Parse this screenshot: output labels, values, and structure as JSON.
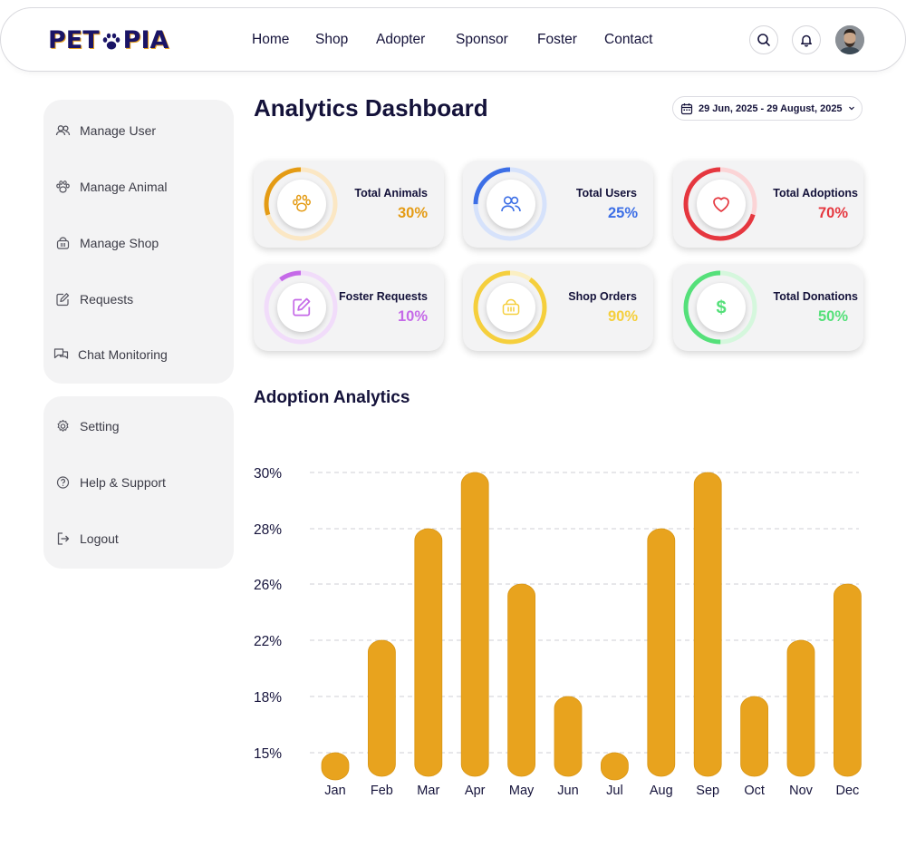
{
  "brand": {
    "logo_left": "PET",
    "logo_right": "PIA"
  },
  "nav": {
    "links": [
      "Home",
      "Shop",
      "Adopter",
      "Sponsor",
      "Foster",
      "Contact"
    ],
    "search_icon": "search-icon",
    "notification_icon": "bell-icon"
  },
  "sidebar": {
    "primary": [
      {
        "label": "Manage User",
        "icon": "users-icon"
      },
      {
        "label": "Manage Animal",
        "icon": "paw-icon"
      },
      {
        "label": "Manage Shop",
        "icon": "basket-icon"
      },
      {
        "label": "Requests",
        "icon": "edit-icon"
      },
      {
        "label": "Chat Monitoring",
        "icon": "chat-icon"
      }
    ],
    "secondary": [
      {
        "label": "Setting",
        "icon": "gear-icon"
      },
      {
        "label": "Help & Support",
        "icon": "help-icon"
      },
      {
        "label": "Logout",
        "icon": "logout-icon"
      }
    ]
  },
  "header": {
    "title": "Analytics Dashboard",
    "date_range": "29 Jun, 2025 - 29 August, 2025"
  },
  "stats": [
    {
      "label": "Total Animals",
      "value": "30%",
      "fraction": 0.3,
      "color": "#e49b14",
      "track": "#fbe7c4",
      "icon": "paw-icon"
    },
    {
      "label": "Total Users",
      "value": "25%",
      "fraction": 0.25,
      "color": "#3d6fe6",
      "track": "#d6e2fb",
      "icon": "users-icon"
    },
    {
      "label": "Total Adoptions",
      "value": "70%",
      "fraction": 0.7,
      "color": "#e5373f",
      "track": "#fbd4d6",
      "icon": "heart-icon"
    },
    {
      "label": "Foster Requests",
      "value": "10%",
      "fraction": 0.1,
      "color": "#c56ae8",
      "track": "#f1dcfa",
      "icon": "edit-icon"
    },
    {
      "label": "Shop Orders",
      "value": "90%",
      "fraction": 0.9,
      "color": "#f5cf3d",
      "track": "#fbefc2",
      "icon": "basket-icon"
    },
    {
      "label": "Total Donations",
      "value": "50%",
      "fraction": 0.5,
      "color": "#55e07a",
      "track": "#d5f7dd",
      "icon": "dollar-icon"
    }
  ],
  "chart_section": {
    "title": "Adoption Analytics"
  },
  "chart_data": {
    "type": "bar",
    "categories": [
      "Jan",
      "Feb",
      "Mar",
      "Apr",
      "May",
      "Jun",
      "Jul",
      "Aug",
      "Sep",
      "Oct",
      "Nov",
      "Dec"
    ],
    "values": [
      15,
      22,
      28,
      30,
      26,
      18,
      15,
      28,
      30,
      18,
      22,
      26
    ],
    "y_ticks": [
      "15%",
      "18%",
      "22%",
      "26%",
      "28%",
      "30%"
    ],
    "bar_color": "#e8a31e",
    "grid": true
  }
}
